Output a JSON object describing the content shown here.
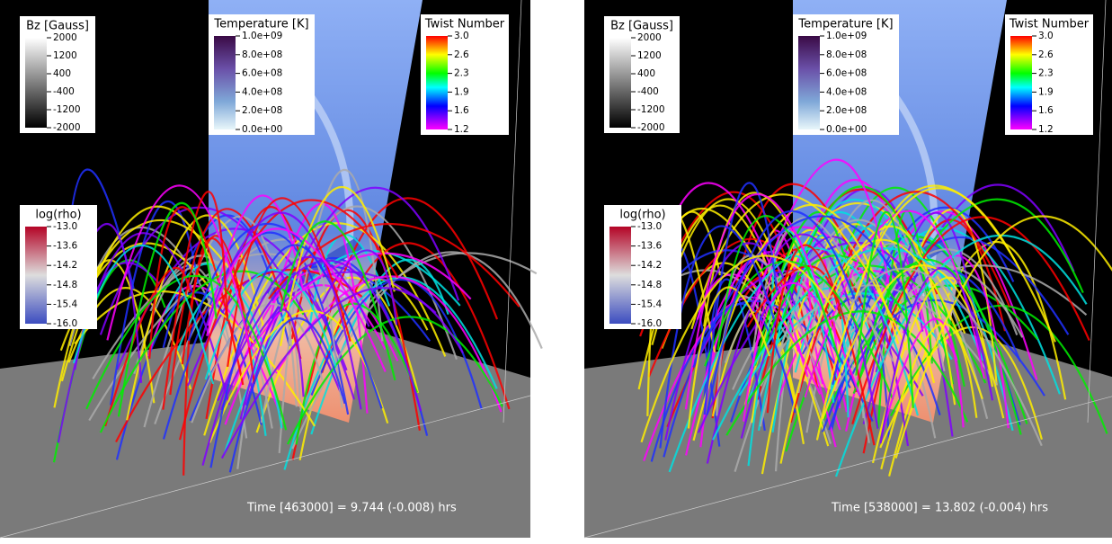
{
  "panels": [
    {
      "colorbars": [
        {
          "title": "Bz [Gauss]",
          "ticks": [
            "2000",
            "1200",
            "400",
            "-400",
            "-1200",
            "-2000"
          ]
        },
        {
          "title": "Temperature [K]",
          "ticks": [
            "1.0e+09",
            "8.0e+08",
            "6.0e+08",
            "4.0e+08",
            "2.0e+08",
            "0.0e+00"
          ]
        },
        {
          "title": "Twist Number",
          "ticks": [
            "3.0",
            "2.6",
            "2.3",
            "1.9",
            "1.6",
            "1.2"
          ]
        },
        {
          "title": "log(rho)",
          "ticks": [
            "-13.0",
            "-13.6",
            "-14.2",
            "-14.8",
            "-15.4",
            "-16.0"
          ]
        }
      ],
      "time": "Time [463000] = 9.744 (-0.008) hrs"
    },
    {
      "colorbars": [
        {
          "title": "Bz [Gauss]",
          "ticks": [
            "2000",
            "1200",
            "400",
            "-400",
            "-1200",
            "-2000"
          ]
        },
        {
          "title": "Temperature [K]",
          "ticks": [
            "1.0e+09",
            "8.0e+08",
            "6.0e+08",
            "4.0e+08",
            "2.0e+08",
            "0.0e+00"
          ]
        },
        {
          "title": "Twist Number",
          "ticks": [
            "3.0",
            "2.6",
            "2.3",
            "1.9",
            "1.6",
            "1.2"
          ]
        },
        {
          "title": "log(rho)",
          "ticks": [
            "-13.0",
            "-13.6",
            "-14.2",
            "-14.8",
            "-15.4",
            "-16.0"
          ]
        }
      ],
      "time": "Time [538000] = 13.802 (-0.004) hrs"
    }
  ]
}
